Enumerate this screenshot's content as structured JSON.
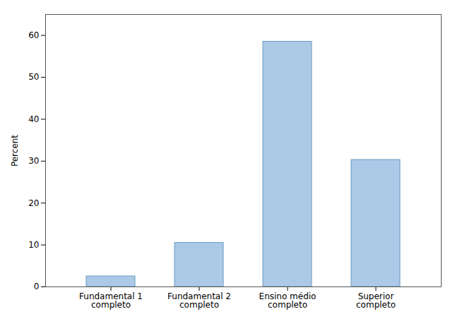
{
  "chart_data": {
    "type": "bar",
    "categories": [
      "Fundamental 1\ncompleto",
      "Fundamental 2\ncompleto",
      "Ensino médio\ncompleto",
      "Superior\ncompleto"
    ],
    "values": [
      2.5,
      10.5,
      58.5,
      30.3
    ],
    "color": "#adc9e8",
    "ylabel": "Percent",
    "ylim": [
      0,
      65
    ],
    "yticks": [
      0,
      10,
      20,
      30,
      40,
      50,
      60
    ],
    "grid": false
  }
}
